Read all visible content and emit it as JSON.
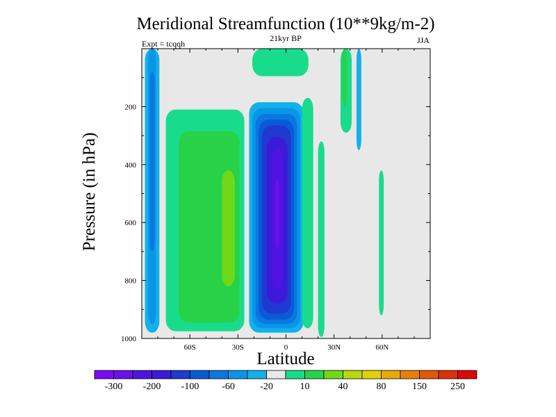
{
  "chart_data": {
    "type": "heatmap",
    "title": "Meridional Streamfunction (10**9kg/m-2)",
    "subtitle_center": "21kyr BP",
    "subtitle_left": "Expt = tcqqh",
    "subtitle_right": "JJA",
    "xlabel": "Latitude",
    "ylabel": "Pressure (in hPa)",
    "xlim": [
      -90,
      90
    ],
    "ylim": [
      0,
      1000
    ],
    "x_ticks": [
      {
        "value": -60,
        "label": "60S"
      },
      {
        "value": -30,
        "label": "30S"
      },
      {
        "value": 0,
        "label": "0"
      },
      {
        "value": 30,
        "label": "30N"
      },
      {
        "value": 60,
        "label": "60N"
      }
    ],
    "y_ticks": [
      {
        "value": 200,
        "label": "200"
      },
      {
        "value": 400,
        "label": "400"
      },
      {
        "value": 600,
        "label": "600"
      },
      {
        "value": 800,
        "label": "800"
      },
      {
        "value": 1000,
        "label": "1000"
      }
    ],
    "colorbar": {
      "colors": [
        "#7a0cf0",
        "#6a10e8",
        "#5014e0",
        "#3c1ad8",
        "#1e3ad0",
        "#0a5ad8",
        "#0a78e0",
        "#0a96e8",
        "#12b2e8",
        "#e8e8e8",
        "#18dc8c",
        "#28d248",
        "#70d818",
        "#b8d810",
        "#e2d008",
        "#e8aa08",
        "#e88008",
        "#e05808",
        "#dc3008",
        "#dc0808"
      ],
      "labels": [
        {
          "after_index": 1,
          "text": "-300"
        },
        {
          "after_index": 3,
          "text": "-200"
        },
        {
          "after_index": 5,
          "text": "-100"
        },
        {
          "after_index": 7,
          "text": "-60"
        },
        {
          "after_index": 9,
          "text": "-20"
        },
        {
          "after_index": 11,
          "text": "10"
        },
        {
          "after_index": 13,
          "text": "40"
        },
        {
          "after_index": 15,
          "text": "80"
        },
        {
          "after_index": 17,
          "text": "150"
        },
        {
          "after_index": 19,
          "text": "250"
        }
      ]
    },
    "background_color": "#e8e8e8",
    "contours": [
      {
        "name": "sh-polar-cell-outer",
        "color": "#12b2e8",
        "lat": [
          -88,
          -79
        ],
        "p": [
          0,
          980
        ]
      },
      {
        "name": "sh-polar-cell-mid",
        "color": "#0a96e8",
        "lat": [
          -86,
          -81
        ],
        "p": [
          0,
          950
        ]
      },
      {
        "name": "sh-polar-cell-core",
        "color": "#0a78e0",
        "lat": [
          -85,
          -82
        ],
        "p": [
          80,
          700
        ]
      },
      {
        "name": "sh-ferrel-cell-outer",
        "color": "#18dc8c",
        "lat": [
          -75,
          -26
        ],
        "p": [
          210,
          975
        ]
      },
      {
        "name": "sh-ferrel-cell-mid",
        "color": "#28d248",
        "lat": [
          -67,
          -29
        ],
        "p": [
          285,
          945
        ]
      },
      {
        "name": "sh-ferrel-cell-core",
        "color": "#70d818",
        "lat": [
          -40,
          -32
        ],
        "p": [
          420,
          820
        ]
      },
      {
        "name": "hadley-top-positive",
        "color": "#18dc8c",
        "lat": [
          -21,
          14
        ],
        "p": [
          0,
          95
        ]
      },
      {
        "name": "hadley-cell-1",
        "color": "#12b2e8",
        "lat": [
          -23,
          11
        ],
        "p": [
          185,
          980
        ]
      },
      {
        "name": "hadley-cell-2",
        "color": "#0a96e8",
        "lat": [
          -21,
          9
        ],
        "p": [
          205,
          965
        ]
      },
      {
        "name": "hadley-cell-3",
        "color": "#0a78e0",
        "lat": [
          -19,
          7
        ],
        "p": [
          225,
          950
        ]
      },
      {
        "name": "hadley-cell-4",
        "color": "#0a5ad8",
        "lat": [
          -17,
          5
        ],
        "p": [
          245,
          935
        ]
      },
      {
        "name": "hadley-cell-5",
        "color": "#1e3ad0",
        "lat": [
          -15,
          3
        ],
        "p": [
          265,
          915
        ]
      },
      {
        "name": "hadley-cell-6",
        "color": "#3c1ad8",
        "lat": [
          -12,
          1
        ],
        "p": [
          305,
          880
        ]
      },
      {
        "name": "hadley-cell-7",
        "color": "#5014e0",
        "lat": [
          -9,
          -2
        ],
        "p": [
          345,
          830
        ]
      },
      {
        "name": "hadley-cell-core",
        "color": "#6a10e8",
        "lat": [
          -7,
          -4
        ],
        "p": [
          450,
          690
        ]
      },
      {
        "name": "tropical-positive-band-a",
        "color": "#18dc8c",
        "lat": [
          10,
          17
        ],
        "p": [
          170,
          965
        ]
      },
      {
        "name": "tropical-positive-band-b",
        "color": "#18dc8c",
        "lat": [
          20,
          24
        ],
        "p": [
          320,
          995
        ]
      },
      {
        "name": "nh-positive-streaks",
        "color": "#18dc8c",
        "lat": [
          34,
          41
        ],
        "p": [
          0,
          290
        ]
      },
      {
        "name": "nh-upper-streak",
        "color": "#28d248",
        "lat": [
          35,
          38
        ],
        "p": [
          0,
          200
        ]
      },
      {
        "name": "nh-negative-streak",
        "color": "#12b2e8",
        "lat": [
          44,
          47
        ],
        "p": [
          0,
          350
        ]
      },
      {
        "name": "nh-midlat-streak",
        "color": "#18dc8c",
        "lat": [
          58,
          61
        ],
        "p": [
          420,
          920
        ]
      }
    ]
  }
}
